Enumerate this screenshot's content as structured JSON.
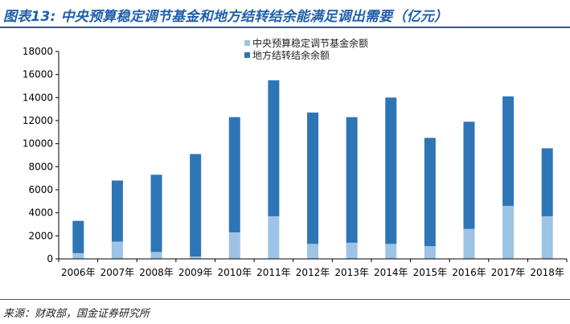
{
  "header": {
    "title": "图表13:  中央预算稳定调节基金和地方结转结余能满足调出需要（亿元）"
  },
  "footer": {
    "source": "来源：财政部，国金证券研究所"
  },
  "colors": {
    "accent": "#1f5fa8",
    "central": "#9dc3e6",
    "local": "#2e75b6"
  },
  "chart_data": {
    "type": "bar",
    "stacked": true,
    "categories": [
      "2006年",
      "2007年",
      "2008年",
      "2009年",
      "2010年",
      "2011年",
      "2012年",
      "2013年",
      "2014年",
      "2015年",
      "2016年",
      "2017年",
      "2018年"
    ],
    "series": [
      {
        "name": "中央预算稳定调节基金余额",
        "color": "#9dc3e6",
        "values": [
          500,
          1500,
          600,
          200,
          2300,
          3700,
          1300,
          1400,
          1300,
          1100,
          2600,
          4600,
          3700
        ]
      },
      {
        "name": "地方结转结余余额",
        "color": "#2e75b6",
        "values": [
          2800,
          5300,
          6700,
          8900,
          10000,
          11800,
          11400,
          10900,
          12700,
          9400,
          9300,
          9500,
          5900
        ]
      }
    ],
    "yticks": [
      "0",
      "2000",
      "4000",
      "6000",
      "8000",
      "10000",
      "12000",
      "14000",
      "16000",
      "18000"
    ],
    "ylim": [
      0,
      18000
    ],
    "legend_position": "top-center",
    "grid": false
  }
}
